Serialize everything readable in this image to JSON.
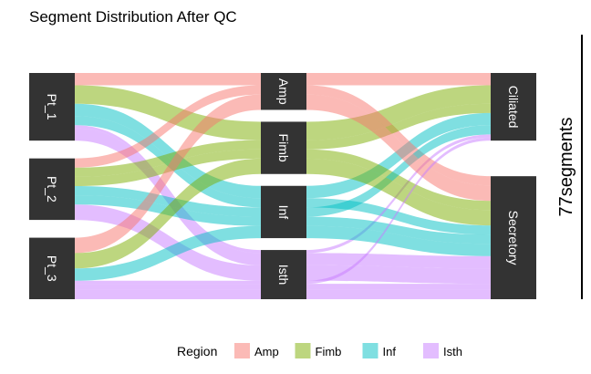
{
  "chart_data": {
    "type": "alluvial",
    "title": "Segment Distribution After QC",
    "axes": [
      [
        "Pt_1",
        "Pt_2",
        "Pt_3"
      ],
      [
        "Amp",
        "Fimb",
        "Inf",
        "Isth"
      ],
      [
        "Ciliated",
        "Secretory"
      ]
    ],
    "color_by": "Region",
    "legend": {
      "title": "Region",
      "position": "bottom",
      "entries": [
        "Amp",
        "Fimb",
        "Inf",
        "Isth"
      ]
    },
    "colors": {
      "Amp": "#f8766d",
      "Fimb": "#7cae00",
      "Inf": "#00bfc4",
      "Isth": "#c77cff"
    },
    "scale_label": "77segments",
    "flows": [
      {
        "patient": "Pt_1",
        "region": "Amp",
        "cell": "Ciliated",
        "value": 4
      },
      {
        "patient": "Pt_1",
        "region": "Fimb",
        "cell": "Ciliated",
        "value": 6
      },
      {
        "patient": "Pt_1",
        "region": "Inf",
        "cell": "Ciliated",
        "value": 4
      },
      {
        "patient": "Pt_1",
        "region": "Inf",
        "cell": "Secretory",
        "value": 3
      },
      {
        "patient": "Pt_1",
        "region": "Isth",
        "cell": "Ciliated",
        "value": 1
      },
      {
        "patient": "Pt_1",
        "region": "Isth",
        "cell": "Secretory",
        "value": 4
      },
      {
        "patient": "Pt_2",
        "region": "Amp",
        "cell": "Secretory",
        "value": 3
      },
      {
        "patient": "Pt_2",
        "region": "Fimb",
        "cell": "Ciliated",
        "value": 3
      },
      {
        "patient": "Pt_2",
        "region": "Fimb",
        "cell": "Secretory",
        "value": 3
      },
      {
        "patient": "Pt_2",
        "region": "Inf",
        "cell": "Ciliated",
        "value": 3
      },
      {
        "patient": "Pt_2",
        "region": "Inf",
        "cell": "Secretory",
        "value": 3
      },
      {
        "patient": "Pt_2",
        "region": "Isth",
        "cell": "Secretory",
        "value": 5
      },
      {
        "patient": "Pt_3",
        "region": "Amp",
        "cell": "Secretory",
        "value": 5
      },
      {
        "patient": "Pt_3",
        "region": "Fimb",
        "cell": "Secretory",
        "value": 5
      },
      {
        "patient": "Pt_3",
        "region": "Inf",
        "cell": "Secretory",
        "value": 4
      },
      {
        "patient": "Pt_3",
        "region": "Isth",
        "cell": "Secretory",
        "value": 2
      },
      {
        "patient": "Pt_3",
        "region": "Isth",
        "cell": "Ciliated",
        "value": 1
      },
      {
        "patient": "Pt_3",
        "region": "Isth",
        "cell": "Secretory",
        "value": 3
      }
    ]
  }
}
